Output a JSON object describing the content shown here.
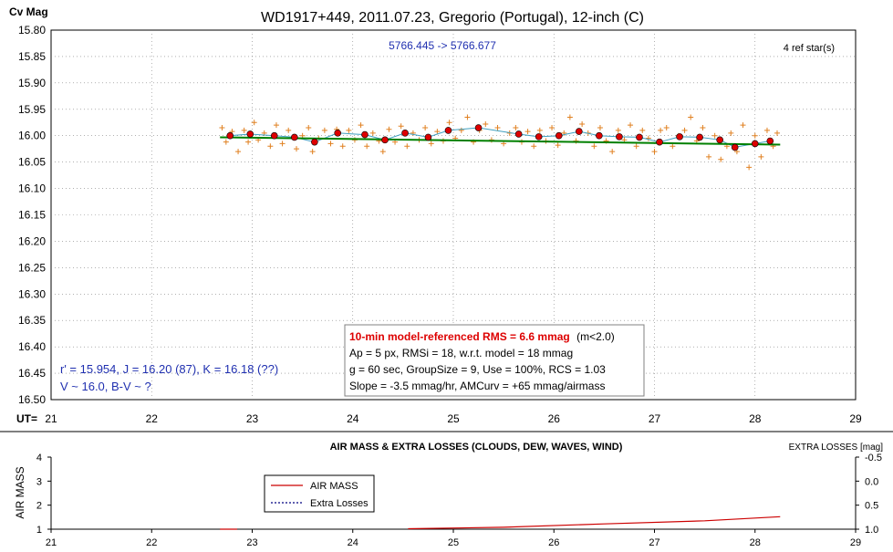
{
  "chart_data": [
    {
      "type": "scatter",
      "title": "WD1917+449, 2011.07.23, Gregorio (Portugal), 12-inch (C)",
      "ylabel": "Cv Mag",
      "xlabel": "UT=",
      "xlim": [
        21,
        29
      ],
      "ylim": [
        16.5,
        15.8
      ],
      "y_inverted": true,
      "x_ticks": [
        "21",
        "22",
        "23",
        "24",
        "25",
        "26",
        "27",
        "28",
        "29"
      ],
      "y_ticks": [
        "15.80",
        "15.85",
        "15.90",
        "15.95",
        "16.00",
        "16.05",
        "16.10",
        "16.15",
        "16.20",
        "16.25",
        "16.30",
        "16.35",
        "16.40",
        "16.45",
        "16.50"
      ],
      "grid": "dotted",
      "jd_range": "5766.445 -> 5766.677",
      "ref_stars": "4 ref star(s)",
      "info_box": {
        "headline": "10-min model-referenced RMS = 6.6 mmag",
        "headline_suffix": "(m<2.0)",
        "lines": [
          "Ap = 5 px, RMSi = 18, w.r.t. model = 18 mmag",
          "g = 60 sec, GroupSize = 9, Use = 100%, RCS = 1.03",
          "Slope = -3.5 mmag/hr, AMCurv = +65 mmag/airmass"
        ]
      },
      "star_info": [
        "r' = 15.954, J = 16.20 (87), K = 16.18 (??)",
        "V ~ 16.0, B-V ~ ?"
      ],
      "series": [
        {
          "kind": "binned",
          "color": "#dd0000",
          "x": [
            22.78,
            22.98,
            23.22,
            23.42,
            23.62,
            23.85,
            24.12,
            24.32,
            24.52,
            24.75,
            24.95,
            25.25,
            25.65,
            25.85,
            26.05,
            26.25,
            26.45,
            26.65,
            26.85,
            27.05,
            27.25,
            27.45,
            27.65,
            27.8,
            28.0,
            28.15
          ],
          "y": [
            16.0,
            15.997,
            16.0,
            16.003,
            16.012,
            15.995,
            15.998,
            16.008,
            15.995,
            16.003,
            15.99,
            15.985,
            15.997,
            16.002,
            16.0,
            15.992,
            16.0,
            16.002,
            16.003,
            16.012,
            16.002,
            16.003,
            16.008,
            16.022,
            16.015,
            16.01
          ]
        },
        {
          "kind": "raw",
          "color": "#e08020",
          "x": [
            22.7,
            22.74,
            22.8,
            22.86,
            22.92,
            22.96,
            23.02,
            23.06,
            23.12,
            23.18,
            23.24,
            23.3,
            23.36,
            23.44,
            23.5,
            23.56,
            23.6,
            23.66,
            23.72,
            23.78,
            23.84,
            23.9,
            23.96,
            24.02,
            24.08,
            24.14,
            24.2,
            24.26,
            24.3,
            24.36,
            24.42,
            24.48,
            24.54,
            24.6,
            24.66,
            24.72,
            24.78,
            24.84,
            24.9,
            24.96,
            25.02,
            25.08,
            25.14,
            25.2,
            25.26,
            25.32,
            25.38,
            25.44,
            25.5,
            25.56,
            25.62,
            25.68,
            25.74,
            25.8,
            25.86,
            25.92,
            25.98,
            26.04,
            26.1,
            26.16,
            26.22,
            26.28,
            26.34,
            26.4,
            26.46,
            26.52,
            26.58,
            26.64,
            26.7,
            26.76,
            26.82,
            26.88,
            26.94,
            27.0,
            27.06,
            27.12,
            27.18,
            27.24,
            27.3,
            27.36,
            27.42,
            27.48,
            27.54,
            27.6,
            27.66,
            27.72,
            27.76,
            27.82,
            27.88,
            27.94,
            28.0,
            28.06,
            28.12,
            28.18,
            28.22
          ],
          "y": [
            15.985,
            16.012,
            15.992,
            16.03,
            15.99,
            16.012,
            15.975,
            16.008,
            15.995,
            16.02,
            15.98,
            16.015,
            15.99,
            16.025,
            16.0,
            15.985,
            16.03,
            16.005,
            15.99,
            16.015,
            15.988,
            16.02,
            15.99,
            16.008,
            15.98,
            16.02,
            15.995,
            16.01,
            16.03,
            15.988,
            16.012,
            15.982,
            16.02,
            15.995,
            16.008,
            15.985,
            16.015,
            15.992,
            16.01,
            15.975,
            16.005,
            15.99,
            15.965,
            16.012,
            15.99,
            15.978,
            16.008,
            15.985,
            16.015,
            15.995,
            15.985,
            16.012,
            15.992,
            16.02,
            15.99,
            16.01,
            15.985,
            16.018,
            15.995,
            15.965,
            16.01,
            15.978,
            15.995,
            16.02,
            15.985,
            16.01,
            16.03,
            15.99,
            16.008,
            15.98,
            16.02,
            15.99,
            16.005,
            16.03,
            15.99,
            15.985,
            16.02,
            16.0,
            15.99,
            15.965,
            16.01,
            15.985,
            16.04,
            16.0,
            16.045,
            16.02,
            15.995,
            16.03,
            15.98,
            16.06,
            16.0,
            16.04,
            15.99,
            16.02,
            15.995
          ]
        },
        {
          "kind": "model_trend",
          "color": "#008000",
          "x": [
            22.68,
            28.25
          ],
          "y": [
            16.003,
            16.017
          ]
        }
      ]
    },
    {
      "type": "line",
      "title": "AIR MASS & EXTRA LOSSES (CLOUDS, DEW, WAVES, WIND)",
      "ylabel": "AIR MASS",
      "y2label": "EXTRA LOSSES [mag]",
      "xlim": [
        21,
        29
      ],
      "ylim": [
        1,
        4
      ],
      "y2lim": [
        1.0,
        -0.5
      ],
      "x_ticks": [
        "21",
        "22",
        "23",
        "24",
        "25",
        "26",
        "27",
        "28",
        "29"
      ],
      "y_ticks": [
        "1",
        "2",
        "3",
        "4"
      ],
      "y2_ticks": [
        "-0.5",
        "0.0",
        "0.5",
        "1.0"
      ],
      "legend": "top-left",
      "series": [
        {
          "name": "AIR MASS",
          "color": "#cc0000",
          "x": [
            22.68,
            22.85,
            24.55,
            25.5,
            26.5,
            27.5,
            28.25
          ],
          "y": [
            1.0,
            1.0,
            1.02,
            1.08,
            1.22,
            1.35,
            1.52
          ]
        },
        {
          "name": "Extra Losses",
          "color": "#000080",
          "x": [],
          "y": []
        }
      ]
    }
  ]
}
